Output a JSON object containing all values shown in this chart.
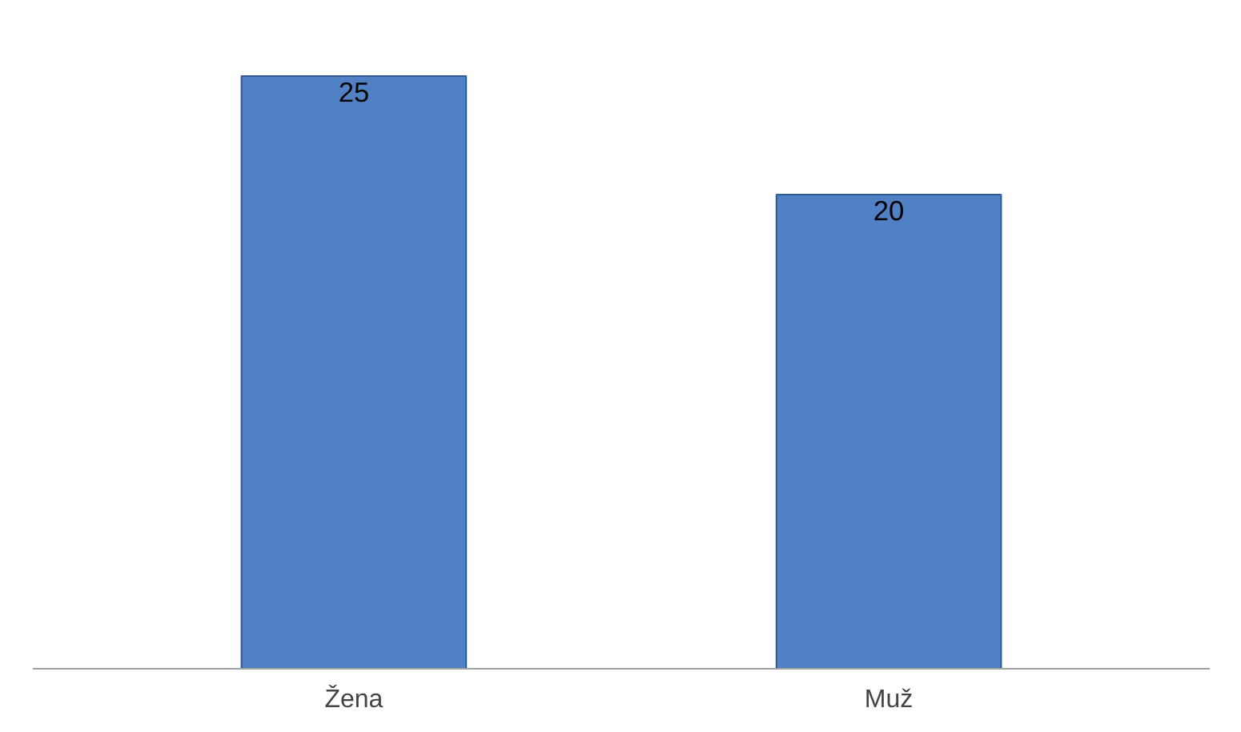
{
  "chart_data": {
    "type": "bar",
    "categories": [
      "Žena",
      "Muž"
    ],
    "values": [
      25,
      20
    ],
    "color": "#4f81c4",
    "data_labels": true,
    "grid": false,
    "tick_labels": "x"
  }
}
